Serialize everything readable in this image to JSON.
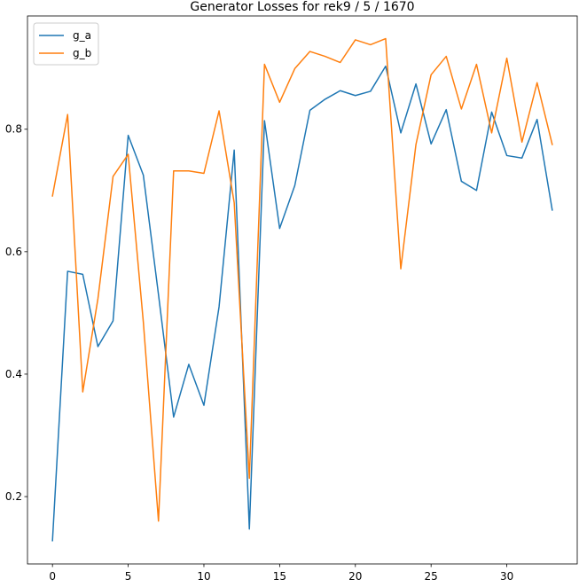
{
  "chart_data": {
    "type": "line",
    "title": "Generator Losses for rek9 / 5 / 1670",
    "xlabel": "",
    "ylabel": "",
    "xlim": [
      -1.65,
      34.65
    ],
    "ylim": [
      0.09,
      0.985
    ],
    "x_ticks": [
      0,
      5,
      10,
      15,
      20,
      25,
      30
    ],
    "y_ticks": [
      0.2,
      0.4,
      0.6,
      0.8
    ],
    "x_tick_labels": [
      "0",
      "5",
      "10",
      "15",
      "20",
      "25",
      "30"
    ],
    "y_tick_labels": [
      "0.2",
      "0.4",
      "0.6",
      "0.8"
    ],
    "grid": false,
    "legend_position": "top-left",
    "x": [
      0,
      1,
      2,
      3,
      4,
      5,
      6,
      7,
      8,
      9,
      10,
      11,
      12,
      13,
      14,
      15,
      16,
      17,
      18,
      19,
      20,
      21,
      22,
      23,
      24,
      25,
      26,
      27,
      28,
      29,
      30,
      31,
      32,
      33
    ],
    "series": [
      {
        "name": "g_a",
        "color": "#1f77b4",
        "values": [
          0.128,
          0.568,
          0.563,
          0.445,
          0.487,
          0.79,
          0.725,
          0.53,
          0.33,
          0.416,
          0.349,
          0.51,
          0.766,
          0.147,
          0.814,
          0.638,
          0.708,
          0.831,
          0.849,
          0.863,
          0.855,
          0.862,
          0.903,
          0.794,
          0.874,
          0.776,
          0.832,
          0.715,
          0.7,
          0.828,
          0.757,
          0.753,
          0.816,
          0.668
        ]
      },
      {
        "name": "g_b",
        "color": "#ff7f0e",
        "values": [
          0.691,
          0.824,
          0.371,
          0.523,
          0.723,
          0.759,
          0.485,
          0.16,
          0.732,
          0.732,
          0.728,
          0.83,
          0.68,
          0.23,
          0.906,
          0.844,
          0.899,
          0.927,
          0.919,
          0.909,
          0.946,
          0.938,
          0.948,
          0.572,
          0.775,
          0.889,
          0.919,
          0.833,
          0.906,
          0.794,
          0.916,
          0.779,
          0.876,
          0.775
        ]
      }
    ]
  }
}
